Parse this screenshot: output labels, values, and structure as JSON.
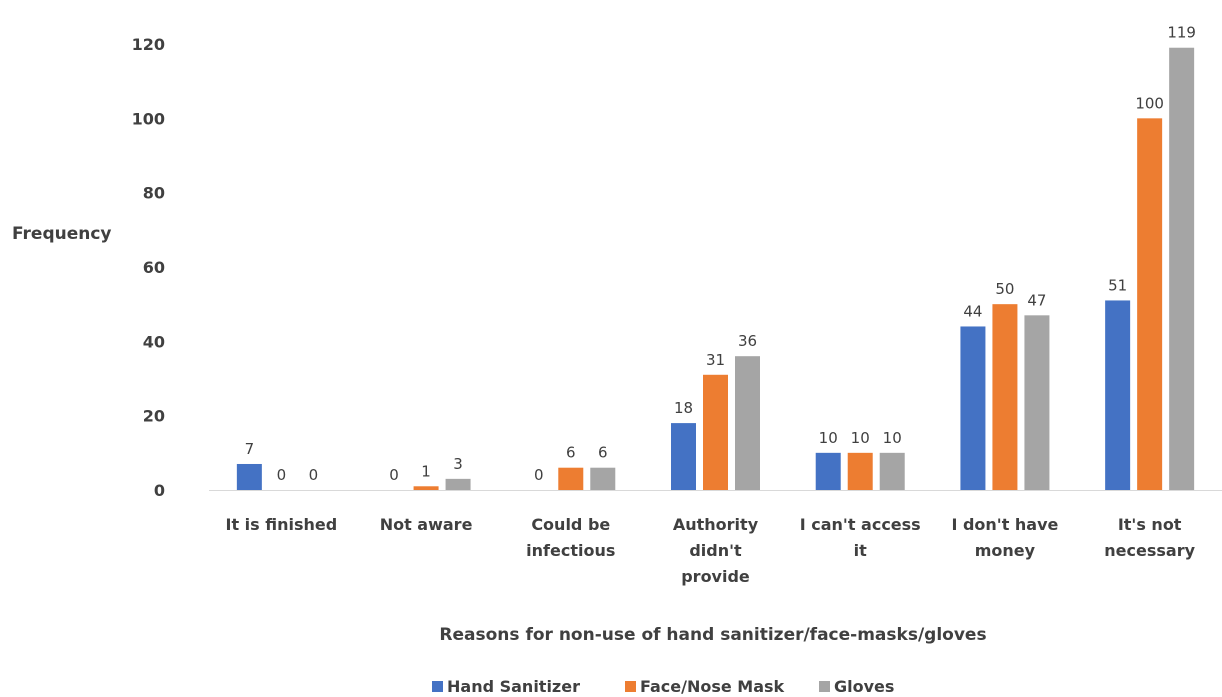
{
  "chart_data": {
    "type": "bar",
    "title": "",
    "xlabel": "Reasons for non-use of hand sanitizer/face-masks/gloves",
    "ylabel": "Frequency",
    "ylim": [
      0,
      120
    ],
    "yticks": [
      0,
      20,
      40,
      60,
      80,
      100,
      120
    ],
    "grid": false,
    "legend_position": "bottom",
    "categories": [
      [
        "It is finished"
      ],
      [
        "Not  aware"
      ],
      [
        "Could be",
        "infectious"
      ],
      [
        "Authority",
        "didn't",
        "provide"
      ],
      [
        "I can't access",
        "it"
      ],
      [
        "I don't have",
        "money"
      ],
      [
        "It's not",
        "necessary"
      ]
    ],
    "series": [
      {
        "name": "Hand Sanitizer",
        "color": "#4472C4",
        "values": [
          7,
          0,
          0,
          18,
          10,
          44,
          51
        ]
      },
      {
        "name": "Face/Nose Mask",
        "color": "#ED7D31",
        "values": [
          0,
          1,
          6,
          31,
          10,
          50,
          100
        ]
      },
      {
        "name": "Gloves",
        "color": "#A5A5A5",
        "values": [
          0,
          3,
          6,
          36,
          10,
          47,
          119
        ]
      }
    ]
  }
}
